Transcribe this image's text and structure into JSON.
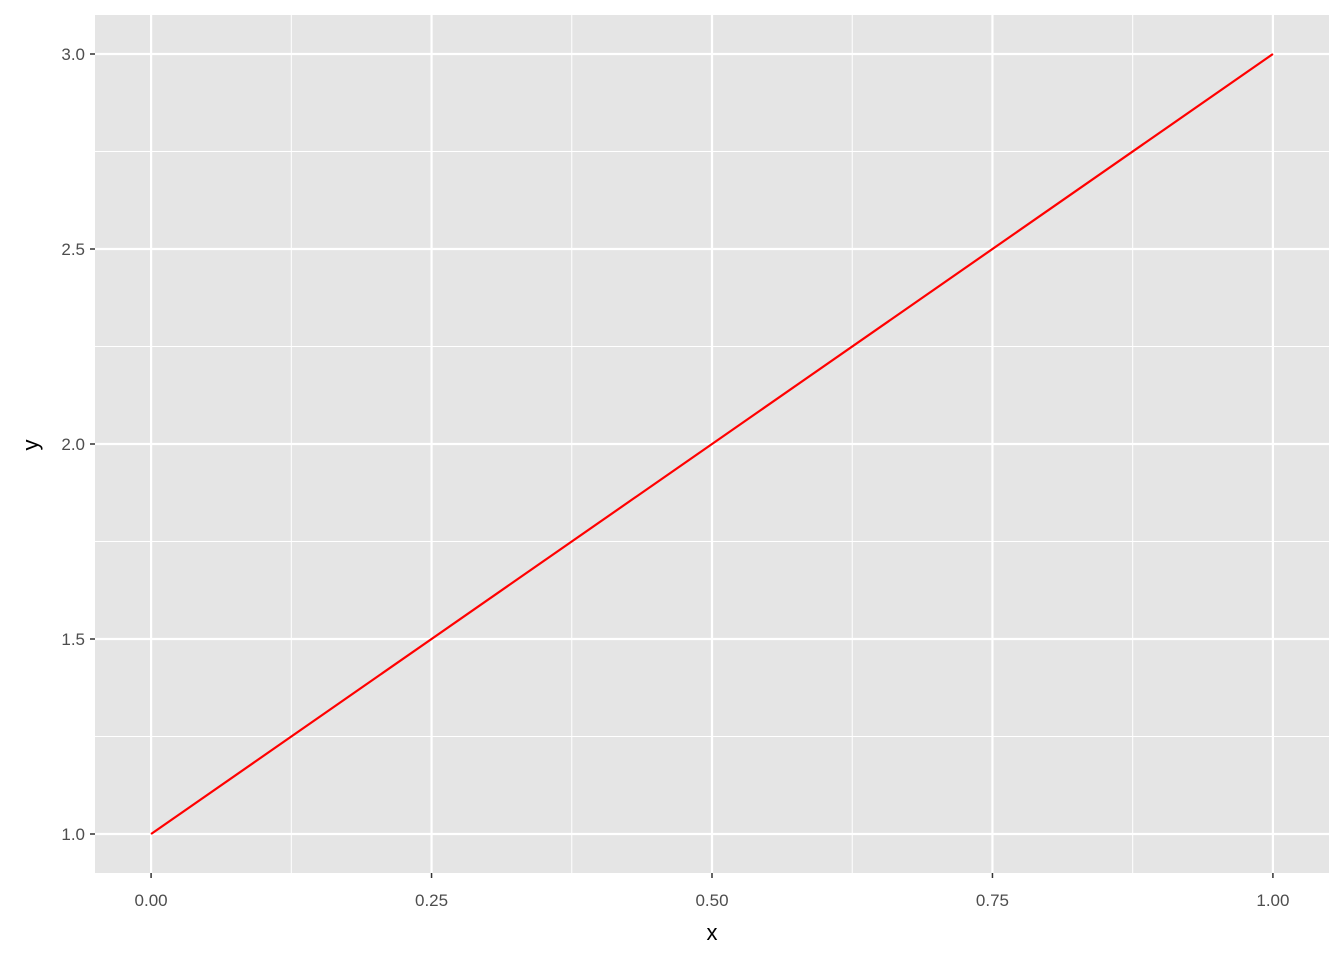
{
  "chart_data": {
    "type": "line",
    "title": "",
    "xlabel": "x",
    "ylabel": "y",
    "xlim": [
      -0.05,
      1.05
    ],
    "ylim": [
      0.9,
      3.1
    ],
    "xticks": [
      0,
      0.25,
      0.5,
      0.75,
      1
    ],
    "xtick_labels": [
      "0.00",
      "0.25",
      "0.50",
      "0.75",
      "1.00"
    ],
    "yticks": [
      1,
      1.5,
      2,
      2.5,
      3
    ],
    "ytick_labels": [
      "1.0",
      "1.5",
      "2.0",
      "2.5",
      "3.0"
    ],
    "grid": true,
    "series": [
      {
        "x": [
          0,
          1
        ],
        "y": [
          1,
          3
        ],
        "color": "#ff0000"
      }
    ],
    "panel_background": "#e5e5e5",
    "grid_color": "#ffffff"
  }
}
